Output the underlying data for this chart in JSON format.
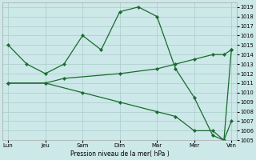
{
  "xlabel": "Pression niveau de la mer( hPa )",
  "background_color": "#cce8e8",
  "grid_color": "#aacccc",
  "line_color": "#1a6b2e",
  "ylim": [
    1005,
    1019.5
  ],
  "ytick_min": 1005,
  "ytick_max": 1019,
  "xtick_labels": [
    "Lun",
    "Jeu",
    "Sam",
    "Dim",
    "Mar",
    "Mer",
    "Ven"
  ],
  "xtick_positions": [
    0,
    1,
    2,
    3,
    4,
    5,
    6
  ],
  "series": [
    {
      "x": [
        0,
        0.5,
        1,
        1.5,
        2,
        2.5,
        3,
        3.5,
        4,
        4.5,
        5,
        5.5,
        5.8,
        6
      ],
      "y": [
        1015,
        1013,
        1012,
        1013,
        1016,
        1014.5,
        1018.5,
        1019,
        1018,
        1012.5,
        1009.5,
        1005.5,
        1005,
        1014.5
      ]
    },
    {
      "x": [
        0,
        1,
        1.5,
        3,
        4,
        4.5,
        5,
        5.5,
        5.8,
        6
      ],
      "y": [
        1011,
        1011,
        1011.5,
        1012,
        1012.5,
        1013,
        1013.5,
        1014,
        1014,
        1014.5
      ]
    },
    {
      "x": [
        0,
        1,
        2,
        3,
        4,
        4.5,
        5,
        5.5,
        5.8,
        6
      ],
      "y": [
        1011,
        1011,
        1010,
        1009,
        1008,
        1007.5,
        1006,
        1006,
        1005,
        1007
      ]
    }
  ]
}
